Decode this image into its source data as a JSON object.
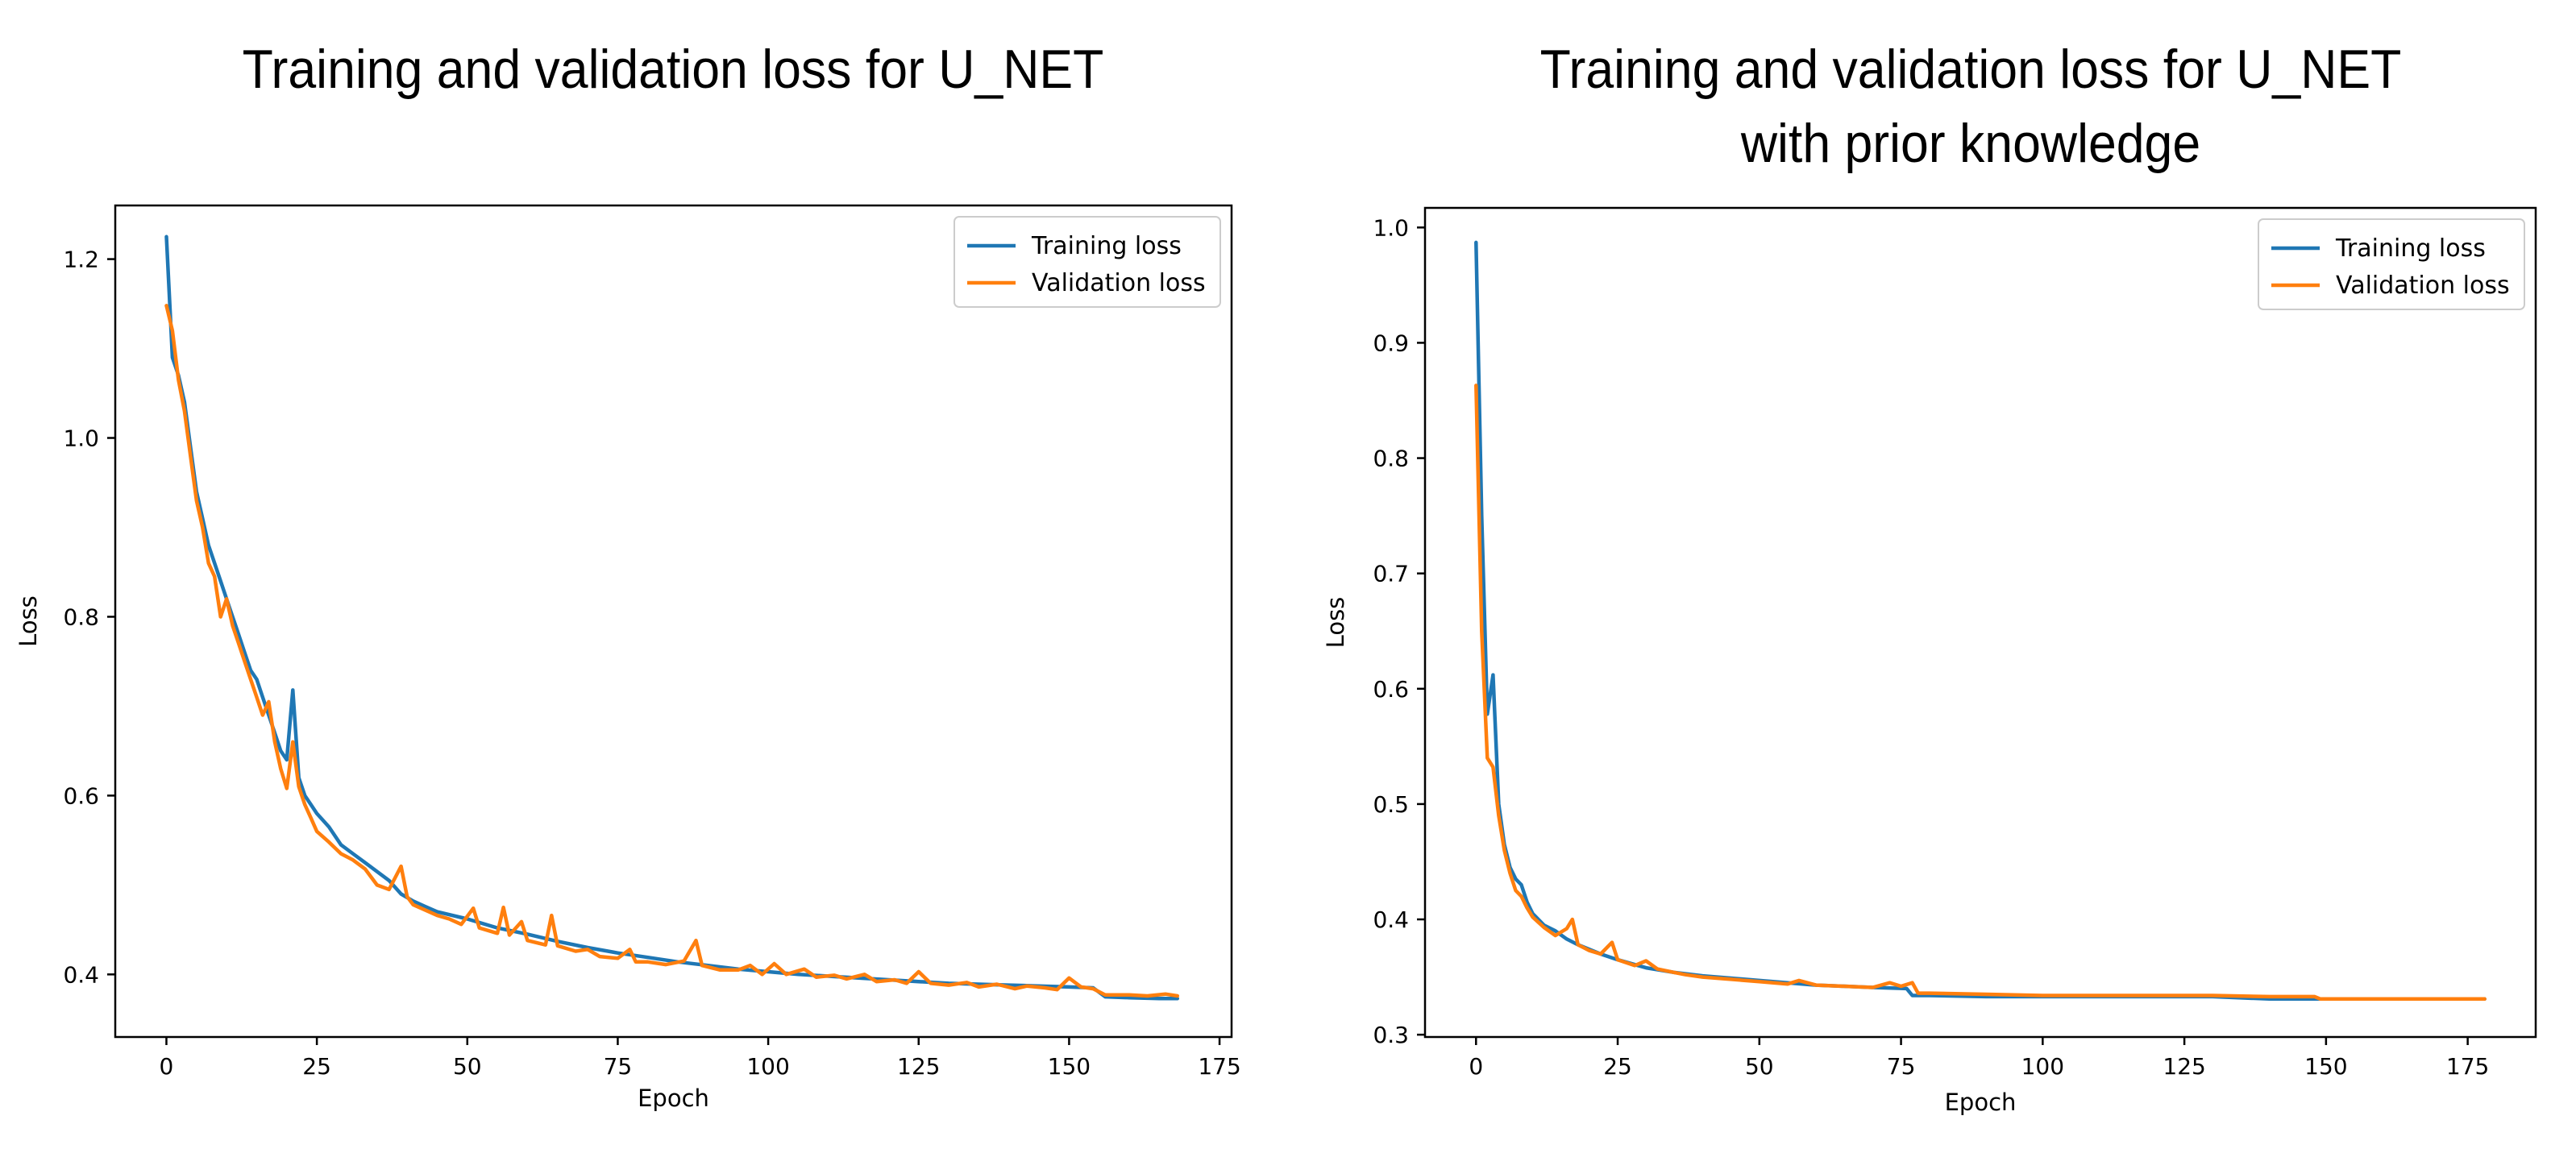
{
  "chart_data": [
    {
      "type": "line",
      "title": "Training and validation loss for U_NET",
      "xlabel": "Epoch",
      "ylabel": "Loss",
      "xlim": [
        -8.5,
        177
      ],
      "ylim": [
        0.33,
        1.26
      ],
      "xticks": [
        0,
        25,
        50,
        75,
        100,
        125,
        150,
        175
      ],
      "yticks": [
        0.4,
        0.6,
        0.8,
        1.0,
        1.2
      ],
      "ytick_labels": [
        "0.4",
        "0.6",
        "0.8",
        "1.0",
        "1.2"
      ],
      "legend": "top-right",
      "series": [
        {
          "name": "Training loss",
          "color": "#1f77b4",
          "points": [
            [
              0,
              1.225
            ],
            [
              1,
              1.09
            ],
            [
              2,
              1.07
            ],
            [
              3,
              1.04
            ],
            [
              4,
              0.99
            ],
            [
              5,
              0.94
            ],
            [
              6,
              0.91
            ],
            [
              7,
              0.88
            ],
            [
              8,
              0.86
            ],
            [
              9,
              0.84
            ],
            [
              10,
              0.82
            ],
            [
              11,
              0.8
            ],
            [
              12,
              0.78
            ],
            [
              13,
              0.76
            ],
            [
              14,
              0.74
            ],
            [
              15,
              0.73
            ],
            [
              16,
              0.71
            ],
            [
              17,
              0.69
            ],
            [
              18,
              0.67
            ],
            [
              19,
              0.65
            ],
            [
              20,
              0.64
            ],
            [
              21,
              0.718
            ],
            [
              22,
              0.62
            ],
            [
              23,
              0.6
            ],
            [
              24,
              0.59
            ],
            [
              25,
              0.58
            ],
            [
              27,
              0.565
            ],
            [
              29,
              0.545
            ],
            [
              31,
              0.535
            ],
            [
              33,
              0.525
            ],
            [
              35,
              0.515
            ],
            [
              37,
              0.505
            ],
            [
              39,
              0.49
            ],
            [
              41,
              0.482
            ],
            [
              43,
              0.476
            ],
            [
              45,
              0.47
            ],
            [
              50,
              0.462
            ],
            [
              55,
              0.452
            ],
            [
              60,
              0.445
            ],
            [
              65,
              0.437
            ],
            [
              70,
              0.43
            ],
            [
              75,
              0.424
            ],
            [
              80,
              0.419
            ],
            [
              85,
              0.414
            ],
            [
              90,
              0.41
            ],
            [
              95,
              0.406
            ],
            [
              100,
              0.403
            ],
            [
              105,
              0.4
            ],
            [
              110,
              0.398
            ],
            [
              115,
              0.396
            ],
            [
              120,
              0.394
            ],
            [
              125,
              0.392
            ],
            [
              130,
              0.39
            ],
            [
              135,
              0.389
            ],
            [
              140,
              0.388
            ],
            [
              145,
              0.387
            ],
            [
              150,
              0.386
            ],
            [
              154,
              0.385
            ],
            [
              156,
              0.375
            ],
            [
              160,
              0.374
            ],
            [
              165,
              0.373
            ],
            [
              168,
              0.373
            ]
          ]
        },
        {
          "name": "Validation loss",
          "color": "#ff7f0e",
          "points": [
            [
              0,
              1.148
            ],
            [
              1,
              1.12
            ],
            [
              2,
              1.065
            ],
            [
              3,
              1.03
            ],
            [
              4,
              0.98
            ],
            [
              5,
              0.93
            ],
            [
              6,
              0.9
            ],
            [
              7,
              0.86
            ],
            [
              8,
              0.845
            ],
            [
              9,
              0.8
            ],
            [
              10,
              0.82
            ],
            [
              11,
              0.79
            ],
            [
              12,
              0.77
            ],
            [
              13,
              0.75
            ],
            [
              14,
              0.73
            ],
            [
              15,
              0.71
            ],
            [
              16,
              0.69
            ],
            [
              17,
              0.705
            ],
            [
              18,
              0.66
            ],
            [
              19,
              0.63
            ],
            [
              20,
              0.608
            ],
            [
              21,
              0.66
            ],
            [
              22,
              0.61
            ],
            [
              23,
              0.59
            ],
            [
              24,
              0.575
            ],
            [
              25,
              0.56
            ],
            [
              27,
              0.548
            ],
            [
              29,
              0.535
            ],
            [
              31,
              0.528
            ],
            [
              33,
              0.518
            ],
            [
              35,
              0.5
            ],
            [
              37,
              0.495
            ],
            [
              39,
              0.521
            ],
            [
              40,
              0.487
            ],
            [
              41,
              0.478
            ],
            [
              43,
              0.472
            ],
            [
              45,
              0.466
            ],
            [
              47,
              0.462
            ],
            [
              49,
              0.456
            ],
            [
              51,
              0.474
            ],
            [
              52,
              0.452
            ],
            [
              55,
              0.446
            ],
            [
              56,
              0.475
            ],
            [
              57,
              0.444
            ],
            [
              59,
              0.459
            ],
            [
              60,
              0.438
            ],
            [
              63,
              0.433
            ],
            [
              64,
              0.466
            ],
            [
              65,
              0.432
            ],
            [
              68,
              0.426
            ],
            [
              70,
              0.428
            ],
            [
              72,
              0.42
            ],
            [
              75,
              0.418
            ],
            [
              77,
              0.428
            ],
            [
              78,
              0.414
            ],
            [
              80,
              0.414
            ],
            [
              83,
              0.411
            ],
            [
              86,
              0.415
            ],
            [
              88,
              0.438
            ],
            [
              89,
              0.41
            ],
            [
              92,
              0.405
            ],
            [
              95,
              0.405
            ],
            [
              97,
              0.41
            ],
            [
              99,
              0.4
            ],
            [
              101,
              0.412
            ],
            [
              103,
              0.4
            ],
            [
              106,
              0.406
            ],
            [
              108,
              0.397
            ],
            [
              111,
              0.399
            ],
            [
              113,
              0.395
            ],
            [
              116,
              0.4
            ],
            [
              118,
              0.392
            ],
            [
              121,
              0.394
            ],
            [
              123,
              0.39
            ],
            [
              125,
              0.403
            ],
            [
              127,
              0.39
            ],
            [
              130,
              0.388
            ],
            [
              133,
              0.391
            ],
            [
              135,
              0.386
            ],
            [
              138,
              0.389
            ],
            [
              141,
              0.384
            ],
            [
              143,
              0.387
            ],
            [
              146,
              0.385
            ],
            [
              148,
              0.383
            ],
            [
              150,
              0.396
            ],
            [
              152,
              0.386
            ],
            [
              154,
              0.384
            ],
            [
              156,
              0.377
            ],
            [
              160,
              0.377
            ],
            [
              163,
              0.376
            ],
            [
              166,
              0.378
            ],
            [
              168,
              0.376
            ]
          ]
        }
      ]
    },
    {
      "type": "line",
      "title": "Training and validation loss for U_NET with prior knowledge",
      "title_lines": [
        "Training and validation loss for U_NET",
        "with prior knowledge"
      ],
      "xlabel": "Epoch",
      "ylabel": "Loss",
      "xlim": [
        -9,
        187
      ],
      "ylim": [
        0.298,
        1.017
      ],
      "xticks": [
        0,
        25,
        50,
        75,
        100,
        125,
        150,
        175
      ],
      "yticks": [
        0.3,
        0.4,
        0.5,
        0.6,
        0.7,
        0.8,
        0.9,
        1.0
      ],
      "ytick_labels": [
        "0.3",
        "0.4",
        "0.5",
        "0.6",
        "0.7",
        "0.8",
        "0.9",
        "1.0"
      ],
      "legend": "top-right",
      "series": [
        {
          "name": "Training loss",
          "color": "#1f77b4",
          "points": [
            [
              0,
              0.987
            ],
            [
              1,
              0.75
            ],
            [
              2,
              0.578
            ],
            [
              3,
              0.612
            ],
            [
              4,
              0.5
            ],
            [
              5,
              0.465
            ],
            [
              6,
              0.445
            ],
            [
              7,
              0.435
            ],
            [
              8,
              0.43
            ],
            [
              9,
              0.415
            ],
            [
              10,
              0.405
            ],
            [
              12,
              0.395
            ],
            [
              14,
              0.39
            ],
            [
              16,
              0.383
            ],
            [
              18,
              0.378
            ],
            [
              20,
              0.374
            ],
            [
              22,
              0.37
            ],
            [
              25,
              0.365
            ],
            [
              30,
              0.358
            ],
            [
              35,
              0.354
            ],
            [
              40,
              0.351
            ],
            [
              45,
              0.349
            ],
            [
              50,
              0.347
            ],
            [
              55,
              0.345
            ],
            [
              60,
              0.343
            ],
            [
              65,
              0.342
            ],
            [
              70,
              0.341
            ],
            [
              76,
              0.34
            ],
            [
              77,
              0.334
            ],
            [
              80,
              0.334
            ],
            [
              90,
              0.333
            ],
            [
              100,
              0.333
            ],
            [
              110,
              0.333
            ],
            [
              120,
              0.333
            ],
            [
              130,
              0.333
            ],
            [
              140,
              0.331
            ],
            [
              150,
              0.331
            ],
            [
              160,
              0.331
            ],
            [
              170,
              0.331
            ],
            [
              178,
              0.331
            ]
          ]
        },
        {
          "name": "Validation loss",
          "color": "#ff7f0e",
          "points": [
            [
              0,
              0.863
            ],
            [
              1,
              0.65
            ],
            [
              2,
              0.54
            ],
            [
              3,
              0.532
            ],
            [
              4,
              0.49
            ],
            [
              5,
              0.46
            ],
            [
              6,
              0.44
            ],
            [
              7,
              0.425
            ],
            [
              8,
              0.42
            ],
            [
              9,
              0.41
            ],
            [
              10,
              0.402
            ],
            [
              12,
              0.393
            ],
            [
              14,
              0.386
            ],
            [
              16,
              0.392
            ],
            [
              17,
              0.4
            ],
            [
              18,
              0.378
            ],
            [
              20,
              0.373
            ],
            [
              22,
              0.37
            ],
            [
              24,
              0.38
            ],
            [
              25,
              0.365
            ],
            [
              28,
              0.36
            ],
            [
              30,
              0.364
            ],
            [
              32,
              0.357
            ],
            [
              35,
              0.354
            ],
            [
              37,
              0.352
            ],
            [
              40,
              0.35
            ],
            [
              45,
              0.348
            ],
            [
              50,
              0.346
            ],
            [
              55,
              0.344
            ],
            [
              57,
              0.347
            ],
            [
              60,
              0.343
            ],
            [
              65,
              0.342
            ],
            [
              70,
              0.341
            ],
            [
              73,
              0.345
            ],
            [
              75,
              0.342
            ],
            [
              77,
              0.345
            ],
            [
              78,
              0.336
            ],
            [
              80,
              0.336
            ],
            [
              90,
              0.335
            ],
            [
              100,
              0.334
            ],
            [
              110,
              0.334
            ],
            [
              120,
              0.334
            ],
            [
              130,
              0.334
            ],
            [
              140,
              0.333
            ],
            [
              148,
              0.333
            ],
            [
              149,
              0.331
            ],
            [
              155,
              0.331
            ],
            [
              165,
              0.331
            ],
            [
              175,
              0.331
            ],
            [
              178,
              0.331
            ]
          ]
        }
      ]
    }
  ]
}
